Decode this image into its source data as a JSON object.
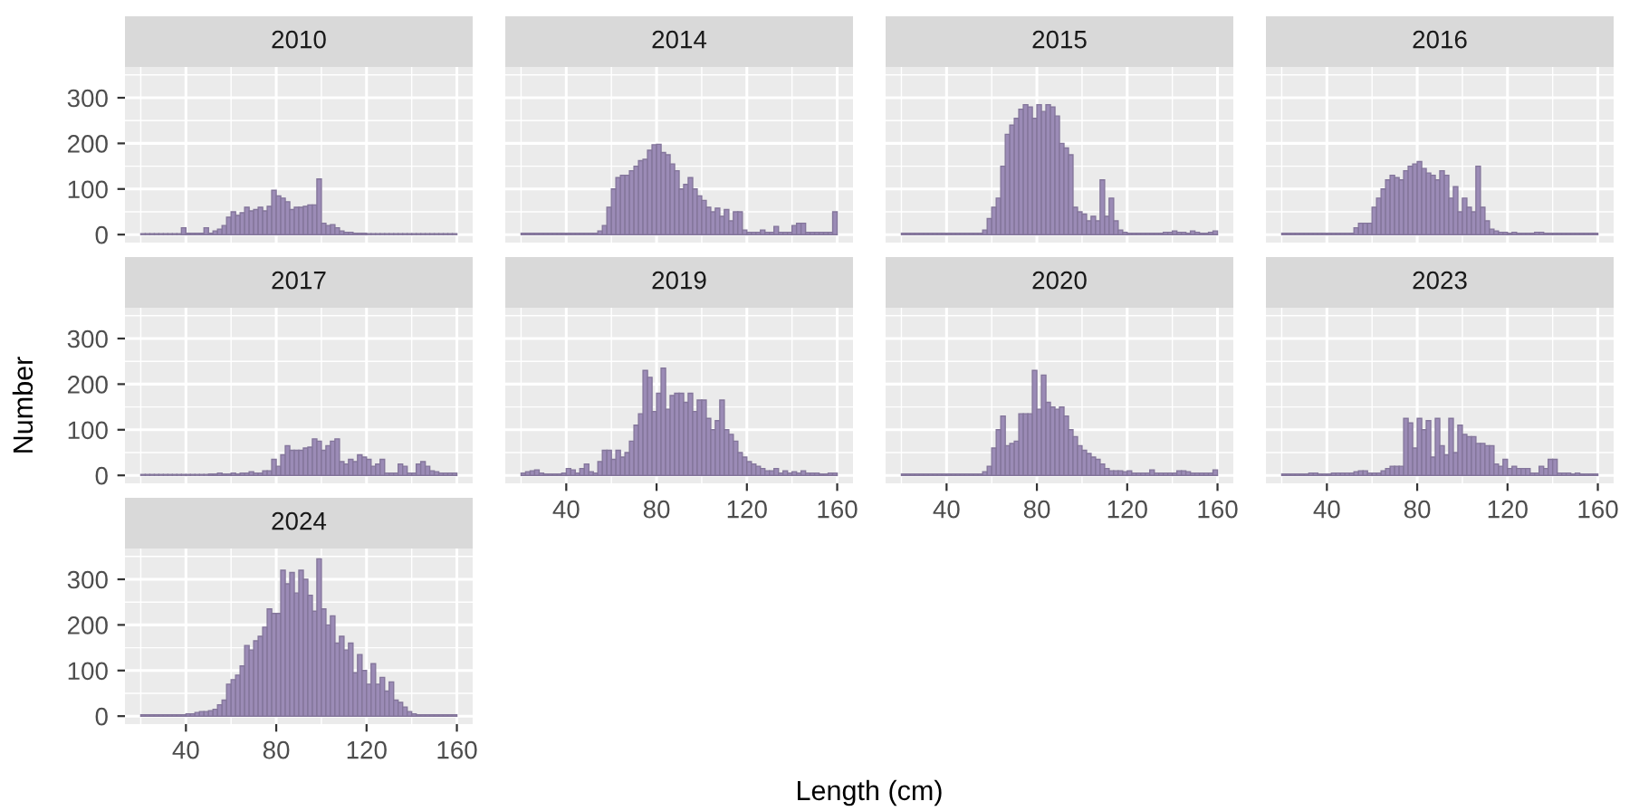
{
  "chart_data": [
    {
      "type": "histogram",
      "title": "2010",
      "color": "#9b8bb6",
      "tick_labels": "y",
      "grid": true,
      "xlim": [
        13,
        167
      ],
      "ylim": [
        -17.5,
        367.5
      ],
      "xticks": [
        40,
        80,
        120,
        160
      ],
      "yticks": [
        0,
        100,
        200,
        300
      ],
      "bins": [
        20,
        22,
        24,
        26,
        28,
        30,
        32,
        34,
        36,
        38,
        40,
        42,
        44,
        46,
        48,
        50,
        52,
        54,
        56,
        58,
        60,
        62,
        64,
        66,
        68,
        70,
        72,
        74,
        76,
        78,
        80,
        82,
        84,
        86,
        88,
        90,
        92,
        94,
        96,
        98,
        100,
        102,
        104,
        106,
        108,
        110,
        112,
        114,
        116,
        118,
        120,
        122,
        124,
        126,
        128,
        130,
        132,
        134,
        136,
        138,
        140,
        142,
        144,
        146,
        148,
        150,
        152,
        154,
        156,
        158,
        160
      ],
      "values": [
        2,
        2,
        2,
        2,
        2,
        2,
        2,
        2,
        2,
        15,
        3,
        3,
        3,
        3,
        15,
        3,
        8,
        12,
        20,
        38,
        50,
        42,
        48,
        60,
        52,
        55,
        60,
        52,
        62,
        97,
        85,
        80,
        72,
        55,
        60,
        60,
        62,
        65,
        65,
        122,
        25,
        20,
        22,
        15,
        8,
        5,
        5,
        3,
        3,
        3,
        2,
        2,
        2,
        2,
        2,
        2,
        2,
        2,
        2,
        2,
        2,
        2,
        2,
        2,
        2,
        2,
        2,
        2,
        2,
        2
      ]
    },
    {
      "type": "histogram",
      "title": "2014",
      "color": "#9b8bb6",
      "tick_labels": false,
      "grid": true,
      "xlim": [
        13,
        167
      ],
      "ylim": [
        -17.5,
        367.5
      ],
      "xticks": [
        40,
        80,
        120,
        160
      ],
      "yticks": [
        0,
        100,
        200,
        300
      ],
      "bins": [
        20,
        22,
        24,
        26,
        28,
        30,
        32,
        34,
        36,
        38,
        40,
        42,
        44,
        46,
        48,
        50,
        52,
        54,
        56,
        58,
        60,
        62,
        64,
        66,
        68,
        70,
        72,
        74,
        76,
        78,
        80,
        82,
        84,
        86,
        88,
        90,
        92,
        94,
        96,
        98,
        100,
        102,
        104,
        106,
        108,
        110,
        112,
        114,
        116,
        118,
        120,
        122,
        124,
        126,
        128,
        130,
        132,
        134,
        136,
        138,
        140,
        142,
        144,
        146,
        148,
        150,
        152,
        154,
        156,
        158,
        160
      ],
      "values": [
        3,
        3,
        3,
        3,
        3,
        3,
        3,
        3,
        3,
        3,
        3,
        3,
        3,
        3,
        3,
        3,
        3,
        8,
        20,
        60,
        100,
        125,
        130,
        130,
        140,
        150,
        162,
        165,
        185,
        197,
        198,
        180,
        175,
        155,
        140,
        100,
        110,
        125,
        100,
        85,
        75,
        60,
        50,
        58,
        40,
        55,
        30,
        50,
        50,
        10,
        5,
        5,
        5,
        10,
        5,
        5,
        18,
        5,
        5,
        5,
        20,
        25,
        25,
        5,
        5,
        5,
        5,
        5,
        5,
        50
      ]
    },
    {
      "type": "histogram",
      "title": "2015",
      "color": "#9b8bb6",
      "tick_labels": false,
      "grid": true,
      "xlim": [
        13,
        167
      ],
      "ylim": [
        -17.5,
        367.5
      ],
      "xticks": [
        40,
        80,
        120,
        160
      ],
      "yticks": [
        0,
        100,
        200,
        300
      ],
      "bins": [
        20,
        22,
        24,
        26,
        28,
        30,
        32,
        34,
        36,
        38,
        40,
        42,
        44,
        46,
        48,
        50,
        52,
        54,
        56,
        58,
        60,
        62,
        64,
        66,
        68,
        70,
        72,
        74,
        76,
        78,
        80,
        82,
        84,
        86,
        88,
        90,
        92,
        94,
        96,
        98,
        100,
        102,
        104,
        106,
        108,
        110,
        112,
        114,
        116,
        118,
        120,
        122,
        124,
        126,
        128,
        130,
        132,
        134,
        136,
        138,
        140,
        142,
        144,
        146,
        148,
        150,
        152,
        154,
        156,
        158,
        160
      ],
      "values": [
        3,
        3,
        3,
        3,
        3,
        3,
        3,
        3,
        3,
        3,
        3,
        3,
        3,
        3,
        3,
        3,
        3,
        3,
        10,
        35,
        60,
        80,
        150,
        220,
        240,
        255,
        275,
        285,
        280,
        255,
        285,
        270,
        285,
        280,
        260,
        200,
        190,
        175,
        60,
        50,
        45,
        30,
        40,
        30,
        120,
        40,
        80,
        30,
        10,
        5,
        3,
        3,
        3,
        3,
        3,
        3,
        3,
        3,
        5,
        5,
        8,
        5,
        5,
        3,
        8,
        5,
        3,
        3,
        5,
        8
      ]
    },
    {
      "type": "histogram",
      "title": "2016",
      "color": "#9b8bb6",
      "tick_labels": false,
      "grid": true,
      "xlim": [
        13,
        167
      ],
      "ylim": [
        -17.5,
        367.5
      ],
      "xticks": [
        40,
        80,
        120,
        160
      ],
      "yticks": [
        0,
        100,
        200,
        300
      ],
      "bins": [
        20,
        22,
        24,
        26,
        28,
        30,
        32,
        34,
        36,
        38,
        40,
        42,
        44,
        46,
        48,
        50,
        52,
        54,
        56,
        58,
        60,
        62,
        64,
        66,
        68,
        70,
        72,
        74,
        76,
        78,
        80,
        82,
        84,
        86,
        88,
        90,
        92,
        94,
        96,
        98,
        100,
        102,
        104,
        106,
        108,
        110,
        112,
        114,
        116,
        118,
        120,
        122,
        124,
        126,
        128,
        130,
        132,
        134,
        136,
        138,
        140,
        142,
        144,
        146,
        148,
        150,
        152,
        154,
        156,
        158,
        160
      ],
      "values": [
        3,
        3,
        3,
        3,
        3,
        3,
        3,
        3,
        3,
        3,
        3,
        3,
        3,
        3,
        3,
        3,
        15,
        25,
        25,
        25,
        60,
        80,
        100,
        120,
        130,
        125,
        120,
        140,
        150,
        155,
        160,
        145,
        135,
        130,
        120,
        140,
        130,
        80,
        105,
        50,
        80,
        60,
        50,
        150,
        60,
        30,
        12,
        8,
        5,
        5,
        3,
        5,
        3,
        3,
        3,
        3,
        5,
        5,
        3,
        3,
        3,
        3,
        3,
        3,
        3,
        3,
        3,
        3,
        3,
        3
      ]
    },
    {
      "type": "histogram",
      "title": "2017",
      "ylabel": "Number",
      "color": "#9b8bb6",
      "tick_labels": "y",
      "grid": true,
      "xlim": [
        13,
        167
      ],
      "ylim": [
        -17.5,
        367.5
      ],
      "xticks": [
        40,
        80,
        120,
        160
      ],
      "yticks": [
        0,
        100,
        200,
        300
      ],
      "bins": [
        20,
        22,
        24,
        26,
        28,
        30,
        32,
        34,
        36,
        38,
        40,
        42,
        44,
        46,
        48,
        50,
        52,
        54,
        56,
        58,
        60,
        62,
        64,
        66,
        68,
        70,
        72,
        74,
        76,
        78,
        80,
        82,
        84,
        86,
        88,
        90,
        92,
        94,
        96,
        98,
        100,
        102,
        104,
        106,
        108,
        110,
        112,
        114,
        116,
        118,
        120,
        122,
        124,
        126,
        128,
        130,
        132,
        134,
        136,
        138,
        140,
        142,
        144,
        146,
        148,
        150,
        152,
        154,
        156,
        158,
        160
      ],
      "values": [
        2,
        2,
        2,
        2,
        2,
        2,
        2,
        2,
        2,
        2,
        2,
        2,
        2,
        2,
        2,
        3,
        3,
        5,
        3,
        3,
        5,
        3,
        5,
        5,
        8,
        5,
        5,
        10,
        10,
        35,
        20,
        45,
        65,
        55,
        55,
        55,
        60,
        62,
        80,
        75,
        55,
        65,
        75,
        80,
        30,
        25,
        35,
        30,
        45,
        40,
        35,
        20,
        25,
        35,
        5,
        5,
        5,
        25,
        20,
        5,
        5,
        25,
        30,
        20,
        10,
        8,
        5,
        5,
        5,
        5
      ]
    },
    {
      "type": "histogram",
      "title": "2019",
      "xlabel": "Length (cm)",
      "color": "#9b8bb6",
      "tick_labels": "x",
      "grid": true,
      "xlim": [
        13,
        167
      ],
      "ylim": [
        -17.5,
        367.5
      ],
      "xticks": [
        40,
        80,
        120,
        160
      ],
      "yticks": [
        0,
        100,
        200,
        300
      ],
      "bins": [
        20,
        22,
        24,
        26,
        28,
        30,
        32,
        34,
        36,
        38,
        40,
        42,
        44,
        46,
        48,
        50,
        52,
        54,
        56,
        58,
        60,
        62,
        64,
        66,
        68,
        70,
        72,
        74,
        76,
        78,
        80,
        82,
        84,
        86,
        88,
        90,
        92,
        94,
        96,
        98,
        100,
        102,
        104,
        106,
        108,
        110,
        112,
        114,
        116,
        118,
        120,
        122,
        124,
        126,
        128,
        130,
        132,
        134,
        136,
        138,
        140,
        142,
        144,
        146,
        148,
        150,
        152,
        154,
        156,
        158,
        160
      ],
      "values": [
        5,
        8,
        10,
        12,
        5,
        3,
        3,
        3,
        3,
        5,
        15,
        12,
        5,
        15,
        25,
        8,
        5,
        30,
        55,
        55,
        35,
        55,
        40,
        50,
        75,
        110,
        135,
        230,
        215,
        140,
        180,
        235,
        145,
        175,
        180,
        180,
        160,
        180,
        140,
        165,
        165,
        125,
        100,
        120,
        165,
        100,
        90,
        75,
        50,
        40,
        30,
        25,
        20,
        15,
        10,
        10,
        15,
        5,
        10,
        5,
        8,
        5,
        10,
        5,
        5,
        5,
        3,
        3,
        5,
        5
      ]
    },
    {
      "type": "histogram",
      "title": "2020",
      "color": "#9b8bb6",
      "tick_labels": "x",
      "grid": true,
      "xlim": [
        13,
        167
      ],
      "ylim": [
        -17.5,
        367.5
      ],
      "xticks": [
        40,
        80,
        120,
        160
      ],
      "yticks": [
        0,
        100,
        200,
        300
      ],
      "bins": [
        20,
        22,
        24,
        26,
        28,
        30,
        32,
        34,
        36,
        38,
        40,
        42,
        44,
        46,
        48,
        50,
        52,
        54,
        56,
        58,
        60,
        62,
        64,
        66,
        68,
        70,
        72,
        74,
        76,
        78,
        80,
        82,
        84,
        86,
        88,
        90,
        92,
        94,
        96,
        98,
        100,
        102,
        104,
        106,
        108,
        110,
        112,
        114,
        116,
        118,
        120,
        122,
        124,
        126,
        128,
        130,
        132,
        134,
        136,
        138,
        140,
        142,
        144,
        146,
        148,
        150,
        152,
        154,
        156,
        158,
        160
      ],
      "values": [
        3,
        3,
        3,
        3,
        3,
        3,
        3,
        3,
        3,
        3,
        3,
        3,
        3,
        3,
        3,
        3,
        3,
        3,
        8,
        20,
        60,
        100,
        130,
        65,
        70,
        75,
        135,
        135,
        135,
        230,
        145,
        220,
        160,
        150,
        145,
        150,
        130,
        100,
        85,
        65,
        55,
        48,
        40,
        35,
        25,
        15,
        10,
        10,
        10,
        8,
        10,
        5,
        5,
        5,
        5,
        12,
        5,
        5,
        5,
        5,
        5,
        10,
        10,
        8,
        5,
        5,
        5,
        5,
        5,
        12
      ]
    },
    {
      "type": "histogram",
      "title": "2023",
      "color": "#9b8bb6",
      "tick_labels": "x",
      "grid": true,
      "xlim": [
        13,
        167
      ],
      "ylim": [
        -17.5,
        367.5
      ],
      "xticks": [
        40,
        80,
        120,
        160
      ],
      "yticks": [
        0,
        100,
        200,
        300
      ],
      "bins": [
        20,
        22,
        24,
        26,
        28,
        30,
        32,
        34,
        36,
        38,
        40,
        42,
        44,
        46,
        48,
        50,
        52,
        54,
        56,
        58,
        60,
        62,
        64,
        66,
        68,
        70,
        72,
        74,
        76,
        78,
        80,
        82,
        84,
        86,
        88,
        90,
        92,
        94,
        96,
        98,
        100,
        102,
        104,
        106,
        108,
        110,
        112,
        114,
        116,
        118,
        120,
        122,
        124,
        126,
        128,
        130,
        132,
        134,
        136,
        138,
        140,
        142,
        144,
        146,
        148,
        150,
        152,
        154,
        156,
        158,
        160
      ],
      "values": [
        3,
        3,
        3,
        3,
        3,
        3,
        5,
        5,
        3,
        3,
        3,
        5,
        5,
        5,
        5,
        5,
        8,
        10,
        10,
        5,
        5,
        5,
        10,
        15,
        20,
        20,
        20,
        125,
        115,
        60,
        125,
        100,
        120,
        40,
        125,
        65,
        45,
        125,
        50,
        110,
        90,
        85,
        85,
        70,
        70,
        65,
        65,
        25,
        20,
        35,
        15,
        20,
        15,
        15,
        15,
        5,
        5,
        20,
        15,
        35,
        35,
        5,
        5,
        5,
        3,
        5,
        3,
        3,
        3,
        3
      ]
    },
    {
      "type": "histogram",
      "title": "2024",
      "color": "#9b8bb6",
      "grid": true,
      "xlim": [
        13,
        167
      ],
      "ylim": [
        -17.5,
        367.5
      ],
      "xticks": [
        40,
        80,
        120,
        160
      ],
      "yticks": [
        0,
        100,
        200,
        300
      ],
      "bins": [
        20,
        22,
        24,
        26,
        28,
        30,
        32,
        34,
        36,
        38,
        40,
        42,
        44,
        46,
        48,
        50,
        52,
        54,
        56,
        58,
        60,
        62,
        64,
        66,
        68,
        70,
        72,
        74,
        76,
        78,
        80,
        82,
        84,
        86,
        88,
        90,
        92,
        94,
        96,
        98,
        100,
        102,
        104,
        106,
        108,
        110,
        112,
        114,
        116,
        118,
        120,
        122,
        124,
        126,
        128,
        130,
        132,
        134,
        136,
        138,
        140,
        142,
        144,
        146,
        148,
        150,
        152,
        154,
        156,
        158,
        160
      ],
      "values": [
        3,
        3,
        3,
        3,
        3,
        3,
        3,
        3,
        3,
        3,
        5,
        5,
        8,
        10,
        10,
        12,
        15,
        25,
        35,
        70,
        80,
        90,
        110,
        155,
        145,
        165,
        175,
        195,
        235,
        225,
        225,
        320,
        290,
        315,
        270,
        320,
        300,
        265,
        230,
        345,
        235,
        200,
        220,
        160,
        175,
        145,
        160,
        95,
        135,
        100,
        70,
        115,
        70,
        85,
        55,
        75,
        35,
        30,
        20,
        10,
        5,
        3,
        3,
        3,
        3,
        3,
        3,
        3,
        3,
        3
      ]
    }
  ]
}
